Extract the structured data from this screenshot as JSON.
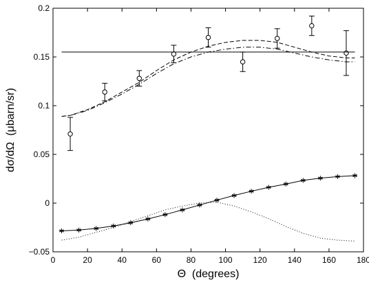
{
  "chart_data": {
    "type": "line",
    "xlabel": "Θ  (degrees)",
    "ylabel": "dσ/dΩ  (μbarn/sr)",
    "xlim": [
      0,
      180
    ],
    "ylim": [
      -0.05,
      0.2
    ],
    "xticks": [
      0,
      20,
      40,
      60,
      80,
      100,
      120,
      140,
      160,
      180
    ],
    "yticks": [
      -0.05,
      0,
      0.05,
      0.1,
      0.15,
      0.2
    ],
    "ytick_labels": [
      "−0.05",
      "0",
      "0.05",
      "0.1",
      "0.15",
      "0.2"
    ],
    "grid": false,
    "legend": "none",
    "series": [
      {
        "style": "points-with-errorbars",
        "marker": "circle",
        "points": [
          {
            "x": 10,
            "y": 0.071,
            "err": 0.017
          },
          {
            "x": 30,
            "y": 0.114,
            "err": 0.009
          },
          {
            "x": 50,
            "y": 0.128,
            "err": 0.008
          },
          {
            "x": 70,
            "y": 0.153,
            "err": 0.009
          },
          {
            "x": 90,
            "y": 0.17,
            "err": 0.01
          },
          {
            "x": 110,
            "y": 0.145,
            "err": 0.01
          },
          {
            "x": 130,
            "y": 0.169,
            "err": 0.01
          },
          {
            "x": 150,
            "y": 0.182,
            "err": 0.01
          },
          {
            "x": 170,
            "y": 0.154,
            "err": 0.023
          }
        ]
      },
      {
        "style": "solid",
        "x": [
          5,
          175
        ],
        "y": [
          0.155,
          0.155
        ]
      },
      {
        "style": "dashed",
        "x": [
          5,
          10,
          20,
          30,
          40,
          50,
          60,
          70,
          80,
          90,
          100,
          110,
          120,
          130,
          140,
          150,
          160,
          170,
          175
        ],
        "y": [
          0.089,
          0.09,
          0.096,
          0.104,
          0.114,
          0.124,
          0.136,
          0.147,
          0.155,
          0.161,
          0.165,
          0.167,
          0.167,
          0.165,
          0.16,
          0.155,
          0.151,
          0.149,
          0.149
        ]
      },
      {
        "style": "dash-dot",
        "x": [
          5,
          10,
          20,
          30,
          40,
          50,
          60,
          70,
          80,
          90,
          100,
          110,
          120,
          130,
          140,
          150,
          160,
          170,
          175
        ],
        "y": [
          0.089,
          0.09,
          0.095,
          0.103,
          0.112,
          0.122,
          0.133,
          0.143,
          0.15,
          0.155,
          0.158,
          0.16,
          0.16,
          0.158,
          0.154,
          0.15,
          0.147,
          0.145,
          0.145
        ]
      },
      {
        "style": "solid-with-markers",
        "marker": "asterisk",
        "x": [
          5,
          15,
          25,
          35,
          45,
          55,
          65,
          75,
          85,
          95,
          105,
          115,
          125,
          135,
          145,
          155,
          165,
          175
        ],
        "y": [
          -0.0285,
          -0.0277,
          -0.026,
          -0.0235,
          -0.0202,
          -0.0163,
          -0.0118,
          -0.007,
          -0.002,
          0.003,
          0.0078,
          0.0122,
          0.0162,
          0.0196,
          0.0233,
          0.0256,
          0.0272,
          0.0282
        ]
      },
      {
        "style": "dotted",
        "x": [
          5,
          15,
          25,
          35,
          45,
          55,
          65,
          75,
          85,
          95,
          105,
          115,
          125,
          135,
          145,
          155,
          165,
          175
        ],
        "y": [
          -0.038,
          -0.035,
          -0.03,
          -0.025,
          -0.019,
          -0.013,
          -0.007,
          -0.003,
          0.0,
          0.001,
          -0.003,
          -0.009,
          -0.016,
          -0.024,
          -0.031,
          -0.036,
          -0.038,
          -0.039
        ]
      }
    ]
  }
}
